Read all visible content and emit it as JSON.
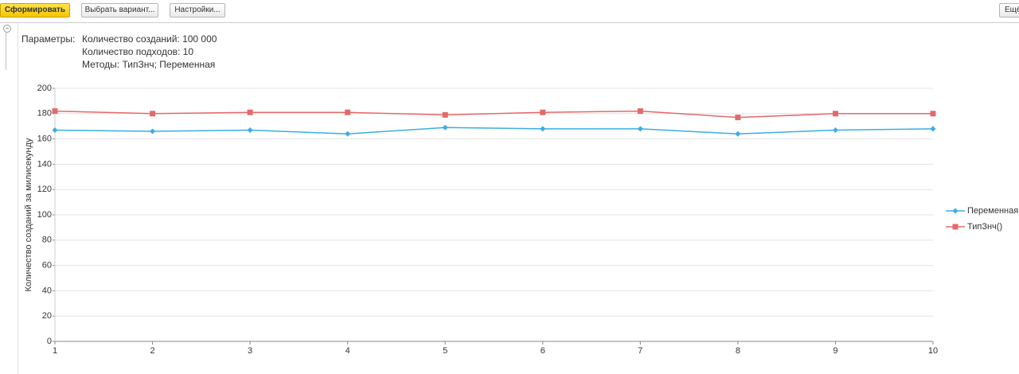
{
  "toolbar": {
    "buttons": [
      "Сформировать",
      "Выбрать вариант...",
      "Настройки...",
      "Ещё"
    ]
  },
  "parameters": {
    "label": "Параметры:",
    "lines": [
      "Количество созданий: 100 000",
      "Количество подходов: 10",
      "Методы: ТипЗнч; Переменная"
    ]
  },
  "chart_data": {
    "type": "line",
    "y_label": "Количество созданий за милисекунду",
    "x": [
      1,
      2,
      3,
      4,
      5,
      6,
      7,
      8,
      9,
      10
    ],
    "xlim": [
      1,
      10
    ],
    "xticks": [
      1,
      2,
      3,
      4,
      5,
      6,
      7,
      8,
      9,
      10
    ],
    "ylim": [
      0,
      200
    ],
    "yticks": [
      0,
      20,
      40,
      60,
      80,
      100,
      120,
      140,
      160,
      180,
      200
    ],
    "grid": true,
    "legend": "right",
    "series": [
      {
        "name": "Переменная",
        "color": "#3aaee3",
        "marker": "diamond",
        "values": [
          167,
          166,
          167,
          164,
          169,
          168,
          168,
          164,
          167,
          168
        ]
      },
      {
        "name": "ТипЗнч()",
        "color": "#e36a6a",
        "marker": "square",
        "values": [
          182,
          180,
          181,
          181,
          179,
          181,
          182,
          177,
          180,
          180
        ]
      }
    ]
  }
}
